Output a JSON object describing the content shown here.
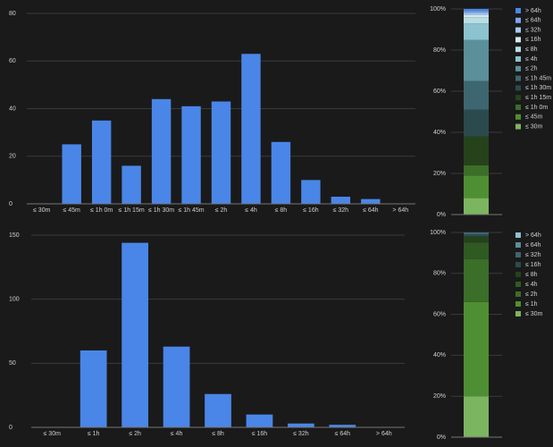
{
  "chart_data": [
    {
      "type": "bar",
      "color": "#4a86e8",
      "categories": [
        "≤ 30m",
        "≤ 45m",
        "≤ 1h 0m",
        "≤ 1h 15m",
        "≤ 1h 30m",
        "≤ 1h 45m",
        "≤ 2h",
        "≤ 4h",
        "≤ 8h",
        "≤ 16h",
        "≤ 32h",
        "≤ 64h",
        "> 64h"
      ],
      "values": [
        0,
        25,
        35,
        16,
        44,
        41,
        43,
        63,
        26,
        10,
        3,
        2,
        0
      ],
      "ylim": [
        0,
        80
      ],
      "yticks": [
        0,
        20,
        40,
        60,
        80
      ],
      "grid": true
    },
    {
      "type": "stacked_bar",
      "series": [
        {
          "name": "≤ 30m",
          "color": "#7cb55f",
          "values": [
            8
          ]
        },
        {
          "name": "≤ 45m",
          "color": "#4f8f33",
          "values": [
            11
          ]
        },
        {
          "name": "≤ 1h 0m",
          "color": "#3b6e28",
          "values": [
            5
          ]
        },
        {
          "name": "≤ 1h 15m",
          "color": "#25421b",
          "values": [
            14
          ]
        },
        {
          "name": "≤ 1h 30m",
          "color": "#2b4a4e",
          "values": [
            13
          ]
        },
        {
          "name": "≤ 1h 45m",
          "color": "#3d6670",
          "values": [
            14
          ]
        },
        {
          "name": "≤ 2h",
          "color": "#5b8f99",
          "values": [
            20
          ]
        },
        {
          "name": "≤ 4h",
          "color": "#8cc3cf",
          "values": [
            8
          ]
        },
        {
          "name": "≤ 8h",
          "color": "#b8dde3",
          "values": [
            3
          ]
        },
        {
          "name": "≤ 16h",
          "color": "#d3e9ec",
          "values": [
            1
          ]
        },
        {
          "name": "≤ 32h",
          "color": "#a8c9ec",
          "values": [
            1
          ]
        },
        {
          "name": "≤ 64h",
          "color": "#7ba6e8",
          "values": [
            1
          ]
        },
        {
          "name": "> 64h",
          "color": "#4a86e8",
          "values": [
            1
          ]
        }
      ],
      "ylim": [
        0,
        100
      ],
      "yticks": [
        {
          "value": 0,
          "label": "0%"
        },
        {
          "value": 20,
          "label": "20%"
        },
        {
          "value": 40,
          "label": "40%"
        },
        {
          "value": 60,
          "label": "60%"
        },
        {
          "value": 80,
          "label": "80%"
        },
        {
          "value": 100,
          "label": "100%"
        }
      ],
      "grid": true
    },
    {
      "type": "bar",
      "color": "#4a86e8",
      "categories": [
        "≤ 30m",
        "≤ 1h",
        "≤ 2h",
        "≤ 4h",
        "≤ 8h",
        "≤ 16h",
        "≤ 32h",
        "≤ 64h",
        "> 64h"
      ],
      "values": [
        0,
        60,
        144,
        63,
        26,
        10,
        3,
        2,
        0
      ],
      "ylim": [
        0,
        150
      ],
      "yticks": [
        0,
        50,
        100,
        150
      ],
      "grid": true
    },
    {
      "type": "stacked_bar",
      "series": [
        {
          "name": "≤ 30m",
          "color": "#7cb55f",
          "values": [
            20
          ]
        },
        {
          "name": "≤ 1h",
          "color": "#4f8f33",
          "values": [
            46
          ]
        },
        {
          "name": "≤ 2h",
          "color": "#3b6e28",
          "values": [
            21
          ]
        },
        {
          "name": "≤ 4h",
          "color": "#2f5a22",
          "values": [
            8
          ]
        },
        {
          "name": "≤ 8h",
          "color": "#25421b",
          "values": [
            3
          ]
        },
        {
          "name": "≤ 16h",
          "color": "#2b4a4e",
          "values": [
            1
          ]
        },
        {
          "name": "≤ 32h",
          "color": "#3d6670",
          "values": [
            1
          ]
        },
        {
          "name": "≤ 64h",
          "color": "#5b8f99",
          "values": [
            0
          ]
        },
        {
          "name": "> 64h",
          "color": "#8cc3cf",
          "values": [
            0
          ]
        }
      ],
      "ylim": [
        0,
        100
      ],
      "yticks": [
        {
          "value": 0,
          "label": "0%"
        },
        {
          "value": 20,
          "label": "20%"
        },
        {
          "value": 40,
          "label": "40%"
        },
        {
          "value": 60,
          "label": "60%"
        },
        {
          "value": 80,
          "label": "80%"
        },
        {
          "value": 100,
          "label": "100%"
        }
      ],
      "grid": true
    }
  ]
}
